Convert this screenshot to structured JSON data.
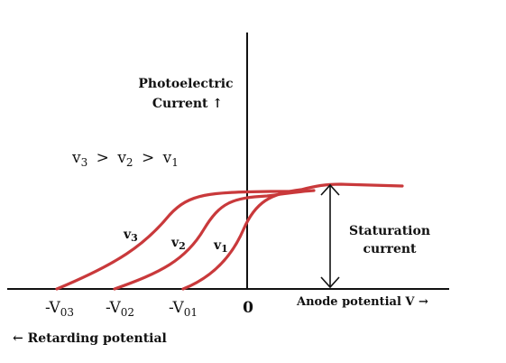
{
  "diagram": {
    "y_axis_label_line1": "Photoelectric",
    "y_axis_label_line2": "Current ↑",
    "x_axis_label": "Anode potential V →",
    "retarding_label": "← Retarding potential",
    "origin_label": "0",
    "frequency_relation": {
      "v3": "v",
      "s3": "3",
      "gt1": ">",
      "v2": "v",
      "s2": "2",
      "gt2": ">",
      "v1": "v",
      "s1": "1"
    },
    "curves": [
      {
        "name": "v",
        "sub": "3",
        "stop_main": "-V",
        "stop_sub": "03"
      },
      {
        "name": "v",
        "sub": "2",
        "stop_main": "-V",
        "stop_sub": "02"
      },
      {
        "name": "v",
        "sub": "1",
        "stop_main": "-V",
        "stop_sub": "01"
      }
    ],
    "saturation_line1": "Staturation",
    "saturation_line2": "current",
    "colors": {
      "curve": "#c9393b",
      "axes": "#111111"
    }
  }
}
